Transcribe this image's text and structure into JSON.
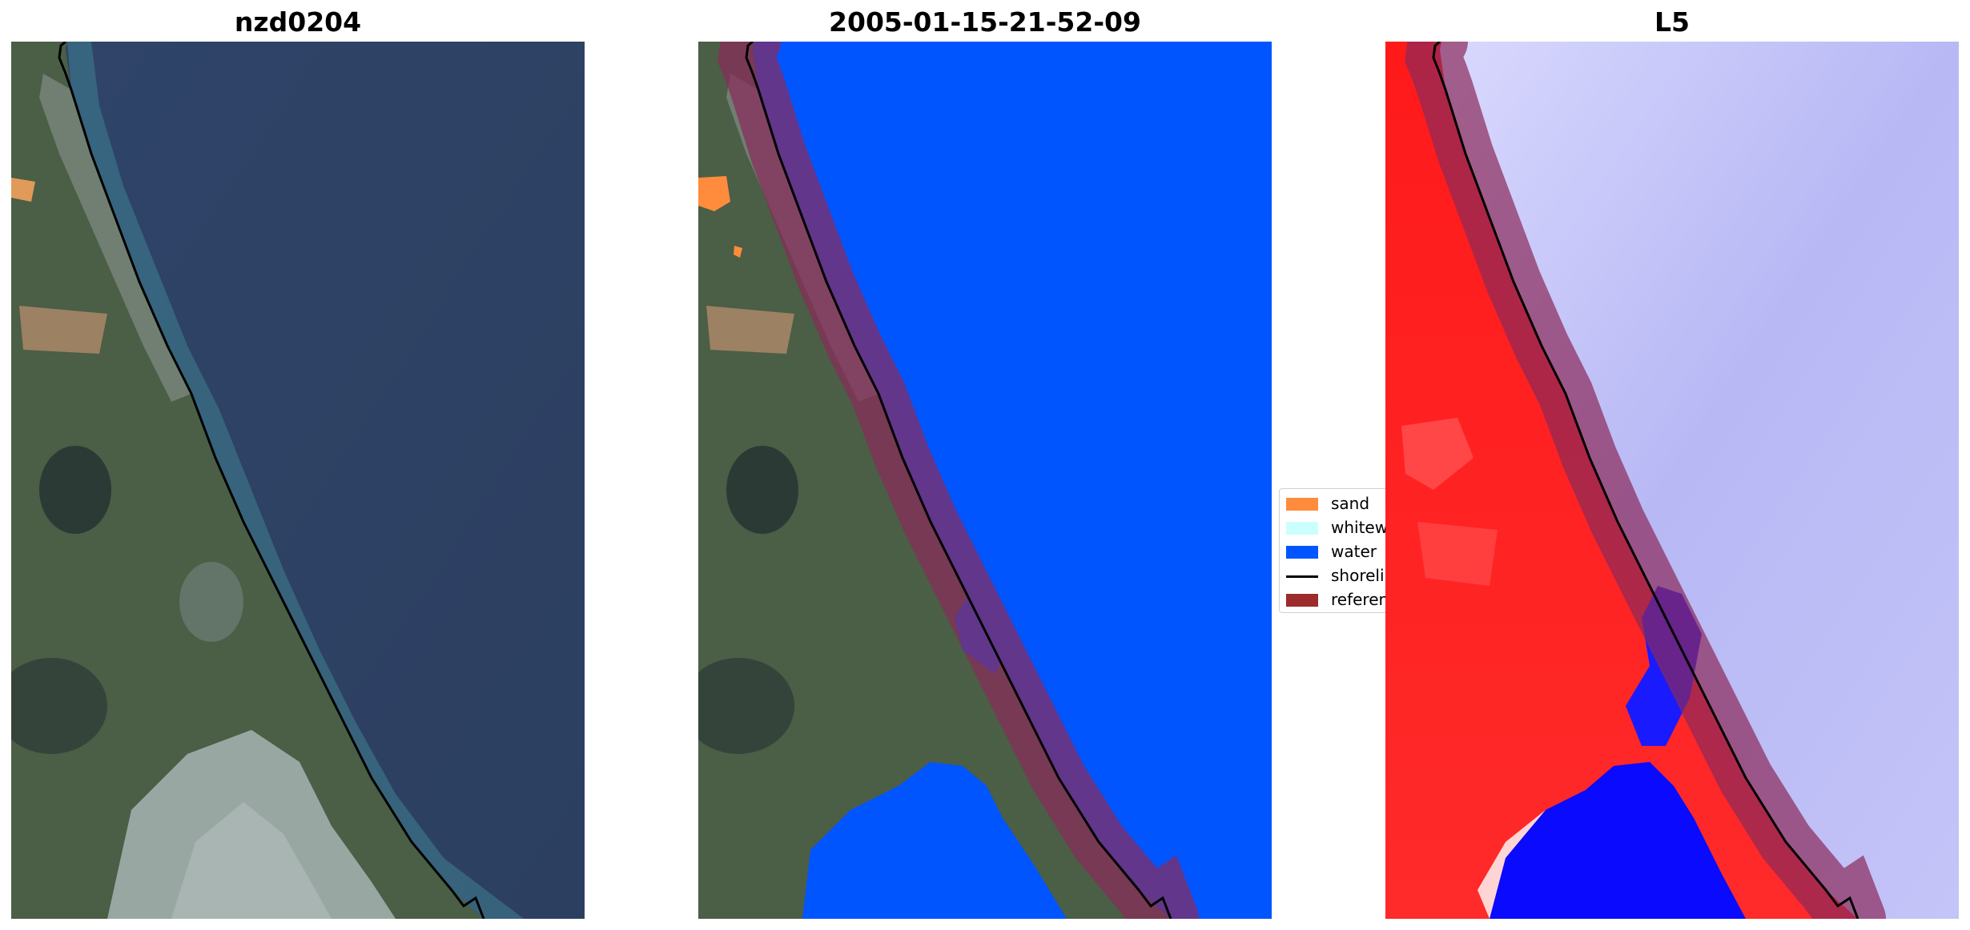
{
  "panels": [
    {
      "title": "nzd0204"
    },
    {
      "title": "2005-01-15-21-52-09"
    },
    {
      "title": "L5"
    }
  ],
  "legend": {
    "items": [
      {
        "label": "sand",
        "color": "#ff8c3c"
      },
      {
        "label": "whitewater",
        "color": "#ccffff"
      },
      {
        "label": "water",
        "color": "#0055ff"
      },
      {
        "label": "shoreline",
        "color": "#000000"
      },
      {
        "label": "reference shoreline buffer",
        "color": "#9c2b2b"
      }
    ]
  },
  "colors": {
    "ocean_rgb": "#2f4469",
    "land_rgb": "#4a5e44",
    "classified_water": "#0055ff",
    "buffer": "#8a2a5a",
    "index_high": "#ff0000",
    "index_low": "#0000ff"
  }
}
